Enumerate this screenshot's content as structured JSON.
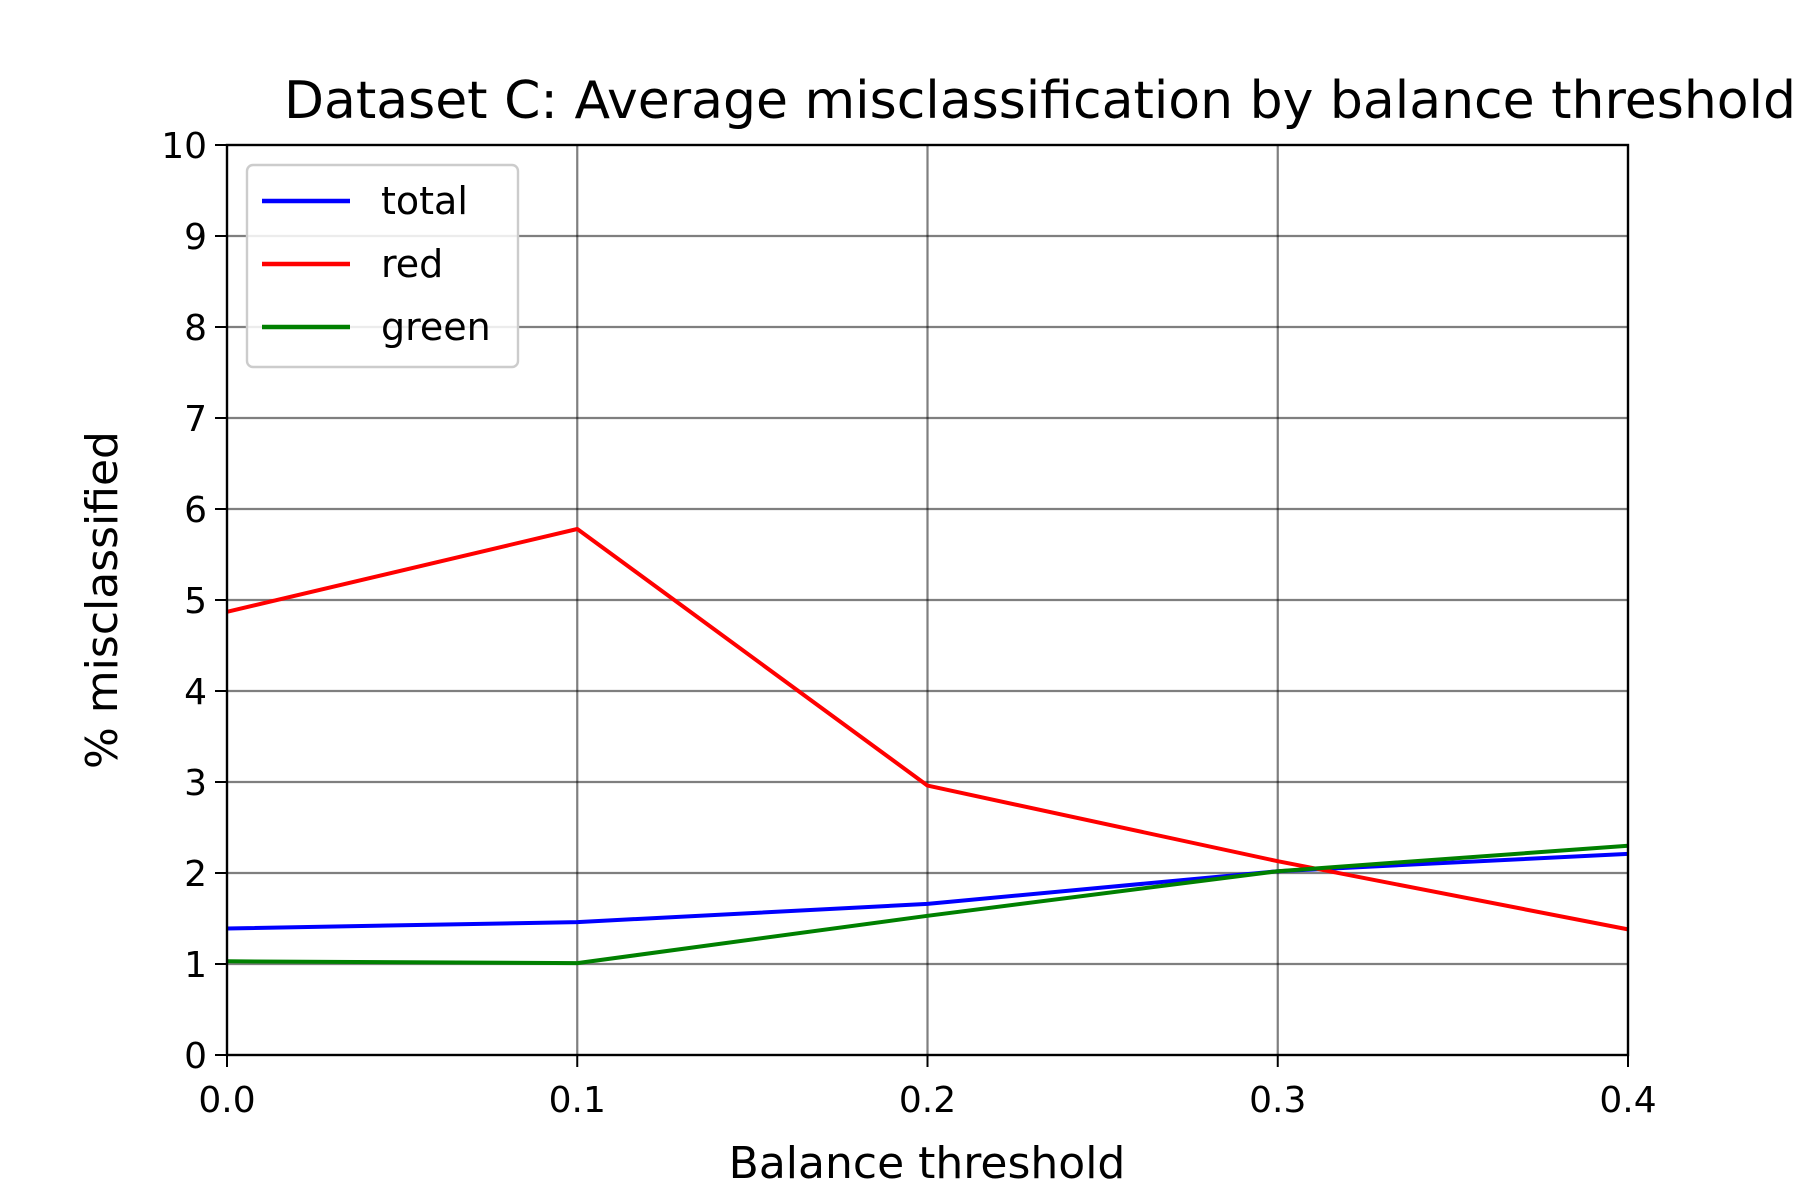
{
  "chart_data": {
    "type": "line",
    "title": "Dataset C: Average misclassification by balance threshold",
    "xlabel": "Balance threshold",
    "ylabel": "% misclassified",
    "x": [
      0.0,
      0.1,
      0.2,
      0.3,
      0.4
    ],
    "xlim": [
      0.0,
      0.4
    ],
    "ylim": [
      0,
      10
    ],
    "xticks": [
      "0.0",
      "0.1",
      "0.2",
      "0.3",
      "0.4"
    ],
    "yticks": [
      "0",
      "1",
      "2",
      "3",
      "4",
      "5",
      "6",
      "7",
      "8",
      "9",
      "10"
    ],
    "grid": true,
    "legend_position": "top-left",
    "series": [
      {
        "name": "total",
        "color": "#0000ff",
        "values": [
          1.39,
          1.46,
          1.66,
          2.02,
          2.21
        ]
      },
      {
        "name": "red",
        "color": "#ff0000",
        "values": [
          4.87,
          5.78,
          2.96,
          2.13,
          1.38
        ]
      },
      {
        "name": "green",
        "color": "#008000",
        "values": [
          1.03,
          1.01,
          1.53,
          2.02,
          2.3
        ]
      }
    ]
  }
}
